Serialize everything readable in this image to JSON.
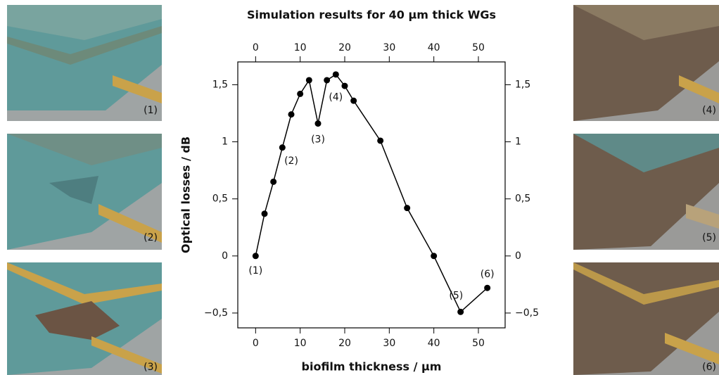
{
  "chart_data": {
    "type": "line",
    "title": "Simulation results for 40 µm thick WGs",
    "x_label": "biofilm thickness / µm",
    "y_label": "Optical losses / dB",
    "x": [
      0,
      2,
      4,
      6,
      8,
      10,
      12,
      14,
      16,
      18,
      20,
      22,
      28,
      34,
      40,
      46,
      52
    ],
    "series": [
      {
        "color": "#000000",
        "values": [
          0,
          0.37,
          0.65,
          0.95,
          1.24,
          1.42,
          1.54,
          1.16,
          1.54,
          1.59,
          1.49,
          1.36,
          1.01,
          0.42,
          0,
          -0.49,
          -0.28
        ]
      }
    ],
    "xlim": [
      -4,
      56
    ],
    "ylim": [
      -0.63,
      1.7
    ],
    "xticks": [
      0,
      10,
      20,
      30,
      40,
      50
    ],
    "yticks": [
      {
        "value": -0.5,
        "label": "−0,5"
      },
      0,
      {
        "value": 0.5,
        "label": "0,5"
      },
      1,
      {
        "value": 1.5,
        "label": "1,5"
      }
    ],
    "annotations": [
      {
        "text": "(1)",
        "x": 0,
        "y": -0.13
      },
      {
        "text": "(2)",
        "x": 8,
        "y": 0.83
      },
      {
        "text": "(3)",
        "x": 14,
        "y": 1.02
      },
      {
        "text": "(4)",
        "x": 18,
        "y": 1.39
      },
      {
        "text": "(5)",
        "x": 45,
        "y": -0.35
      },
      {
        "text": "(6)",
        "x": 52,
        "y": -0.16
      }
    ]
  },
  "panels": [
    {
      "label": "(1)"
    },
    {
      "label": "(2)"
    },
    {
      "label": "(3)"
    },
    {
      "label": "(4)"
    },
    {
      "label": "(5)"
    },
    {
      "label": "(6)"
    }
  ]
}
